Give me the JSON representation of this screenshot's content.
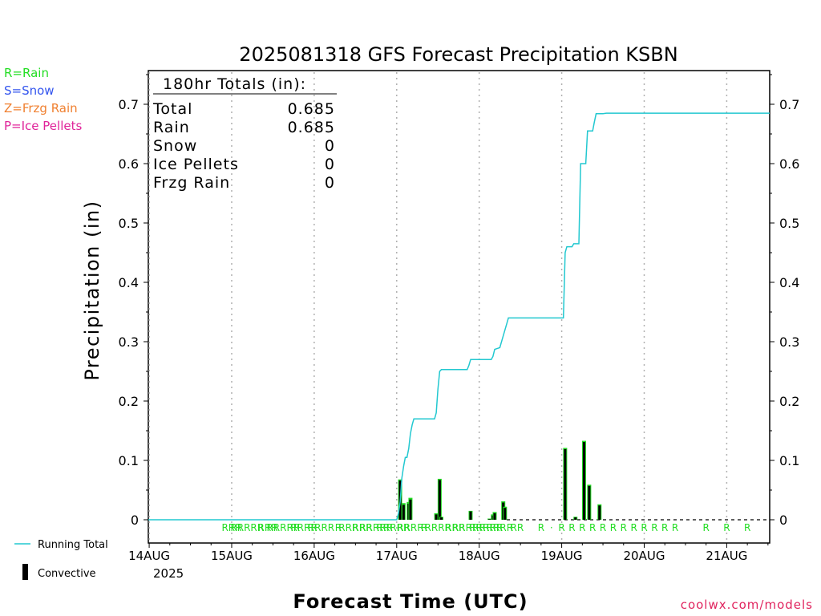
{
  "chart_data": {
    "type": "bar",
    "title": "2025081318 GFS Forecast Precipitation KSBN",
    "xlabel": "Forecast Time (UTC)",
    "ylabel": "Precipitation (in)",
    "ylim": [
      0,
      0.75
    ],
    "y_ticks": [
      "0",
      "0.1",
      "0.2",
      "0.3",
      "0.4",
      "0.5",
      "0.6",
      "0.7"
    ],
    "x_range_hours_from_14aug00z": [
      -0.25,
      180.5
    ],
    "x_ticks": [
      {
        "label": "14AUG",
        "hour": 0
      },
      {
        "label": "15AUG",
        "hour": 24
      },
      {
        "label": "16AUG",
        "hour": 48
      },
      {
        "label": "17AUG",
        "hour": 72
      },
      {
        "label": "18AUG",
        "hour": 96
      },
      {
        "label": "19AUG",
        "hour": 120
      },
      {
        "label": "20AUG",
        "hour": 144
      },
      {
        "label": "21AUG",
        "hour": 168
      }
    ],
    "x_year_label": "2025",
    "grid": "dotted vertical at day boundaries",
    "legend_types": [
      {
        "label": "R=Rain",
        "color": "#22dd22"
      },
      {
        "label": "S=Snow",
        "color": "#3355ee"
      },
      {
        "label": "Z=Frzg Rain",
        "color": "#f08030"
      },
      {
        "label": "P=Ice Pellets",
        "color": "#e0249a"
      }
    ],
    "legend_series": [
      {
        "label": "Running Total",
        "color": "#22c8d0"
      },
      {
        "label": "Convective",
        "color": "#000000"
      }
    ],
    "totals_box": {
      "header": "180hr Totals (in):",
      "rows": [
        {
          "label": "Total",
          "value": "0.685"
        },
        {
          "label": "Rain",
          "value": "0.685"
        },
        {
          "label": "Snow",
          "value": "0"
        },
        {
          "label": "Ice Pellets",
          "value": "0"
        },
        {
          "label": "Frzg Rain",
          "value": "0"
        }
      ]
    },
    "running_total": {
      "color": "#22c8d0",
      "points": [
        [
          -6,
          0
        ],
        [
          72,
          0
        ],
        [
          72.5,
          0.01
        ],
        [
          73,
          0.03
        ],
        [
          73.5,
          0.07
        ],
        [
          74,
          0.09
        ],
        [
          74.5,
          0.105
        ],
        [
          75,
          0.105
        ],
        [
          75.5,
          0.12
        ],
        [
          76,
          0.145
        ],
        [
          76.5,
          0.16
        ],
        [
          77,
          0.17
        ],
        [
          83,
          0.17
        ],
        [
          83.5,
          0.18
        ],
        [
          84,
          0.22
        ],
        [
          84.5,
          0.25
        ],
        [
          85,
          0.253
        ],
        [
          92.5,
          0.253
        ],
        [
          93,
          0.26
        ],
        [
          93.5,
          0.27
        ],
        [
          99.5,
          0.27
        ],
        [
          100,
          0.275
        ],
        [
          100.5,
          0.287
        ],
        [
          102,
          0.29
        ],
        [
          103,
          0.31
        ],
        [
          104,
          0.33
        ],
        [
          104.5,
          0.34
        ],
        [
          120.5,
          0.34
        ],
        [
          121,
          0.45
        ],
        [
          121.5,
          0.46
        ],
        [
          123,
          0.46
        ],
        [
          123.5,
          0.465
        ],
        [
          125,
          0.465
        ],
        [
          125.5,
          0.6
        ],
        [
          127,
          0.6
        ],
        [
          127.5,
          0.655
        ],
        [
          129,
          0.655
        ],
        [
          129.5,
          0.67
        ],
        [
          130,
          0.684
        ],
        [
          132,
          0.684
        ],
        [
          133,
          0.685
        ],
        [
          180.5,
          0.685
        ]
      ]
    },
    "bars": [
      {
        "hour": 73,
        "total": 0.068,
        "convective": 0.066
      },
      {
        "hour": 74,
        "total": 0.028,
        "convective": 0.025
      },
      {
        "hour": 75.5,
        "total": 0.03,
        "convective": 0.027
      },
      {
        "hour": 76,
        "total": 0.037,
        "convective": 0.034
      },
      {
        "hour": 83.5,
        "total": 0.011,
        "convective": 0.009
      },
      {
        "hour": 84.5,
        "total": 0.069,
        "convective": 0.067
      },
      {
        "hour": 85,
        "total": 0.005,
        "convective": 0.004
      },
      {
        "hour": 93.5,
        "total": 0.015,
        "convective": 0.014
      },
      {
        "hour": 99,
        "total": 0.002,
        "convective": 0.001
      },
      {
        "hour": 100,
        "total": 0.009,
        "convective": 0.007
      },
      {
        "hour": 100.5,
        "total": 0.013,
        "convective": 0.011
      },
      {
        "hour": 103,
        "total": 0.031,
        "convective": 0.029
      },
      {
        "hour": 103.5,
        "total": 0.022,
        "convective": 0.02
      },
      {
        "hour": 121,
        "total": 0.121,
        "convective": 0.119
      },
      {
        "hour": 124,
        "total": 0.005,
        "convective": 0.004
      },
      {
        "hour": 126.5,
        "total": 0.133,
        "convective": 0.131
      },
      {
        "hour": 128,
        "total": 0.059,
        "convective": 0.057
      },
      {
        "hour": 131,
        "total": 0.026,
        "convective": 0.024
      }
    ],
    "precip_type_markers": [
      {
        "hour": 24,
        "label": "RRR"
      },
      {
        "hour": 28.5,
        "label": "RRRRR"
      },
      {
        "hour": 34.5,
        "label": "RRR"
      },
      {
        "hour": 39,
        "label": "RRRRR"
      },
      {
        "hour": 45,
        "label": "RRRR"
      },
      {
        "hour": 50,
        "label": "RRRR"
      },
      {
        "hour": 55,
        "label": "R"
      },
      {
        "hour": 58,
        "label": "RRR"
      },
      {
        "hour": 62,
        "label": "RRR"
      },
      {
        "hour": 66,
        "label": "RRRRR"
      },
      {
        "hour": 71,
        "label": "RRRRR"
      },
      {
        "hour": 76,
        "label": "RRRR"
      },
      {
        "hour": 80,
        "label": "R"
      },
      {
        "hour": 84,
        "label": "RRRR"
      },
      {
        "hour": 89,
        "label": "RRR"
      },
      {
        "hour": 93,
        "label": "RRRRR"
      },
      {
        "hour": 98,
        "label": "RRRRR"
      },
      {
        "hour": 102,
        "label": "RRRR"
      },
      {
        "hour": 107,
        "label": "RR"
      },
      {
        "hour": 114,
        "label": "R"
      },
      {
        "hour": 117,
        "label": "·"
      },
      {
        "hour": 120,
        "label": "R"
      },
      {
        "hour": 123,
        "label": "R"
      },
      {
        "hour": 126,
        "label": "R"
      },
      {
        "hour": 129,
        "label": "R"
      },
      {
        "hour": 132,
        "label": "R"
      },
      {
        "hour": 135,
        "label": "R"
      },
      {
        "hour": 138,
        "label": "R"
      },
      {
        "hour": 141,
        "label": "R"
      },
      {
        "hour": 144,
        "label": "R"
      },
      {
        "hour": 147,
        "label": "R"
      },
      {
        "hour": 150,
        "label": "R"
      },
      {
        "hour": 153,
        "label": "R"
      },
      {
        "hour": 162,
        "label": "R"
      },
      {
        "hour": 168,
        "label": "R"
      },
      {
        "hour": 174,
        "label": "R"
      }
    ],
    "rain_color": "#22dd22",
    "bar_color": "#000000"
  },
  "credit": "coolwx.com/models"
}
